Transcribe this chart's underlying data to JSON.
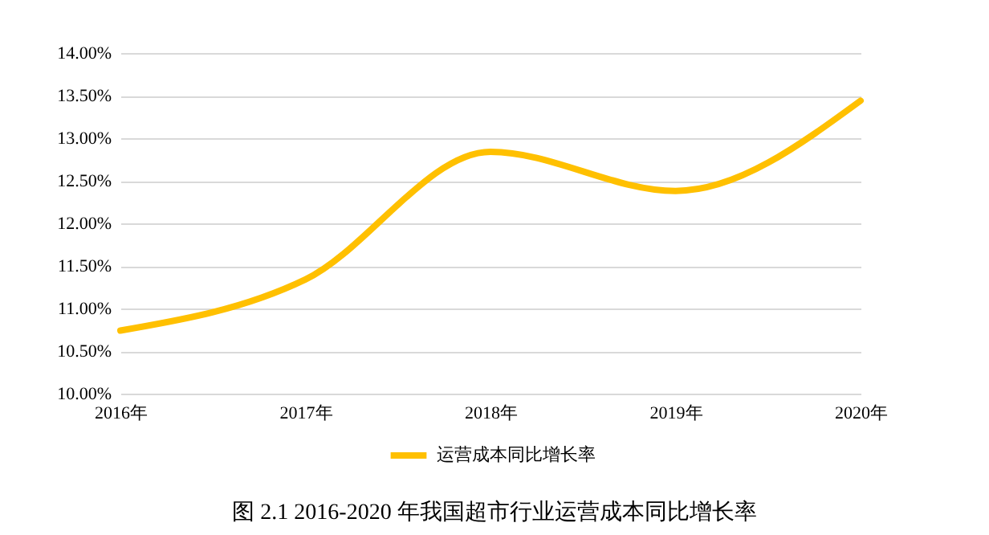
{
  "chart_data": {
    "type": "line",
    "categories": [
      "2016年",
      "2017年",
      "2018年",
      "2019年",
      "2020年"
    ],
    "series": [
      {
        "name": "运营成本同比增长率",
        "color": "#ffc000",
        "values": [
          10.74,
          11.34,
          12.84,
          12.38,
          13.44
        ]
      }
    ],
    "ylim": [
      10,
      14
    ],
    "yticks": [
      {
        "value": 10,
        "label": "10.00%"
      },
      {
        "value": 10.5,
        "label": "10.50%"
      },
      {
        "value": 11,
        "label": "11.00%"
      },
      {
        "value": 11.5,
        "label": "11.50%"
      },
      {
        "value": 12,
        "label": "12.00%"
      },
      {
        "value": 12.5,
        "label": "12.50%"
      },
      {
        "value": 13,
        "label": "13.00%"
      },
      {
        "value": 13.5,
        "label": "13.50%"
      },
      {
        "value": 14,
        "label": "14.00%"
      }
    ],
    "grid": "y",
    "legend": "bottom",
    "annotations": [
      "图 2.1 2016-2020 年我国超市行业运营成本同比增长率"
    ]
  }
}
